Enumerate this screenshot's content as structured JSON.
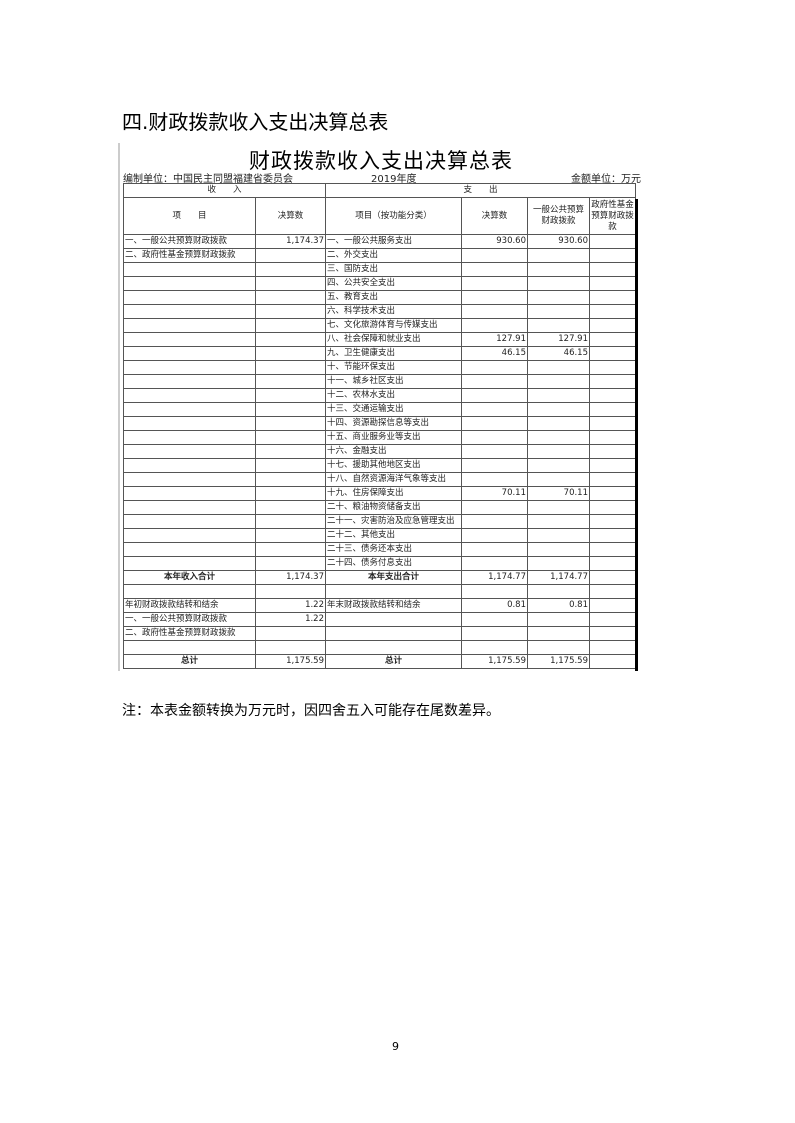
{
  "heading": "四.财政拨款收入支出决算总表",
  "table": {
    "title": "财政拨款收入支出决算总表",
    "org": "编制单位：中国民主同盟福建省委员会",
    "year": "2019年度",
    "unit": "金额单位：万元",
    "income_group": "收　　入",
    "expense_group": "支　　出",
    "headers": [
      "项　　目",
      "决算数",
      "项目（按功能分类）",
      "决算数",
      "一般公共预算财政拨款",
      "政府性基金预算财政拨款"
    ],
    "rows": [
      [
        "一、一般公共预算财政拨款",
        "1,174.37",
        "一、一般公共服务支出",
        "930.60",
        "930.60",
        ""
      ],
      [
        "二、政府性基金预算财政拨款",
        "",
        "二、外交支出",
        "",
        "",
        ""
      ],
      [
        "",
        "",
        "三、国防支出",
        "",
        "",
        ""
      ],
      [
        "",
        "",
        "四、公共安全支出",
        "",
        "",
        ""
      ],
      [
        "",
        "",
        "五、教育支出",
        "",
        "",
        ""
      ],
      [
        "",
        "",
        "六、科学技术支出",
        "",
        "",
        ""
      ],
      [
        "",
        "",
        "七、文化旅游体育与传媒支出",
        "",
        "",
        ""
      ],
      [
        "",
        "",
        "八、社会保障和就业支出",
        "127.91",
        "127.91",
        ""
      ],
      [
        "",
        "",
        "九、卫生健康支出",
        "46.15",
        "46.15",
        ""
      ],
      [
        "",
        "",
        "十、节能环保支出",
        "",
        "",
        ""
      ],
      [
        "",
        "",
        "十一、城乡社区支出",
        "",
        "",
        ""
      ],
      [
        "",
        "",
        "十二、农林水支出",
        "",
        "",
        ""
      ],
      [
        "",
        "",
        "十三、交通运输支出",
        "",
        "",
        ""
      ],
      [
        "",
        "",
        "十四、资源勘探信息等支出",
        "",
        "",
        ""
      ],
      [
        "",
        "",
        "十五、商业服务业等支出",
        "",
        "",
        ""
      ],
      [
        "",
        "",
        "十六、金融支出",
        "",
        "",
        ""
      ],
      [
        "",
        "",
        "十七、援助其他地区支出",
        "",
        "",
        ""
      ],
      [
        "",
        "",
        "十八、自然资源海洋气象等支出",
        "",
        "",
        ""
      ],
      [
        "",
        "",
        "十九、住房保障支出",
        "70.11",
        "70.11",
        ""
      ],
      [
        "",
        "",
        "二十、粮油物资储备支出",
        "",
        "",
        ""
      ],
      [
        "",
        "",
        "二十一、灾害防治及应急管理支出",
        "",
        "",
        ""
      ],
      [
        "",
        "",
        "二十二、其他支出",
        "",
        "",
        ""
      ],
      [
        "",
        "",
        "二十三、债务还本支出",
        "",
        "",
        ""
      ],
      [
        "",
        "",
        "二十四、债务付息支出",
        "",
        "",
        ""
      ]
    ],
    "subtotal": [
      "本年收入合计",
      "1,174.37",
      "本年支出合计",
      "1,174.77",
      "1,174.77",
      ""
    ],
    "balance_rows": [
      [
        "",
        "",
        "",
        "",
        "",
        ""
      ],
      [
        "年初财政拨款结转和结余",
        "1.22",
        "年末财政拨款结转和结余",
        "0.81",
        "0.81",
        ""
      ],
      [
        "一、一般公共预算财政拨款",
        "1.22",
        "",
        "",
        "",
        ""
      ],
      [
        "二、政府性基金预算财政拨款",
        "",
        "",
        "",
        "",
        ""
      ],
      [
        "",
        "",
        "",
        "",
        "",
        ""
      ]
    ],
    "total": [
      "总计",
      "1,175.59",
      "总计",
      "1,175.59",
      "1,175.59",
      ""
    ]
  },
  "note": "注：本表金额转换为万元时，因四舍五入可能存在尾数差异。",
  "page_number": "9"
}
